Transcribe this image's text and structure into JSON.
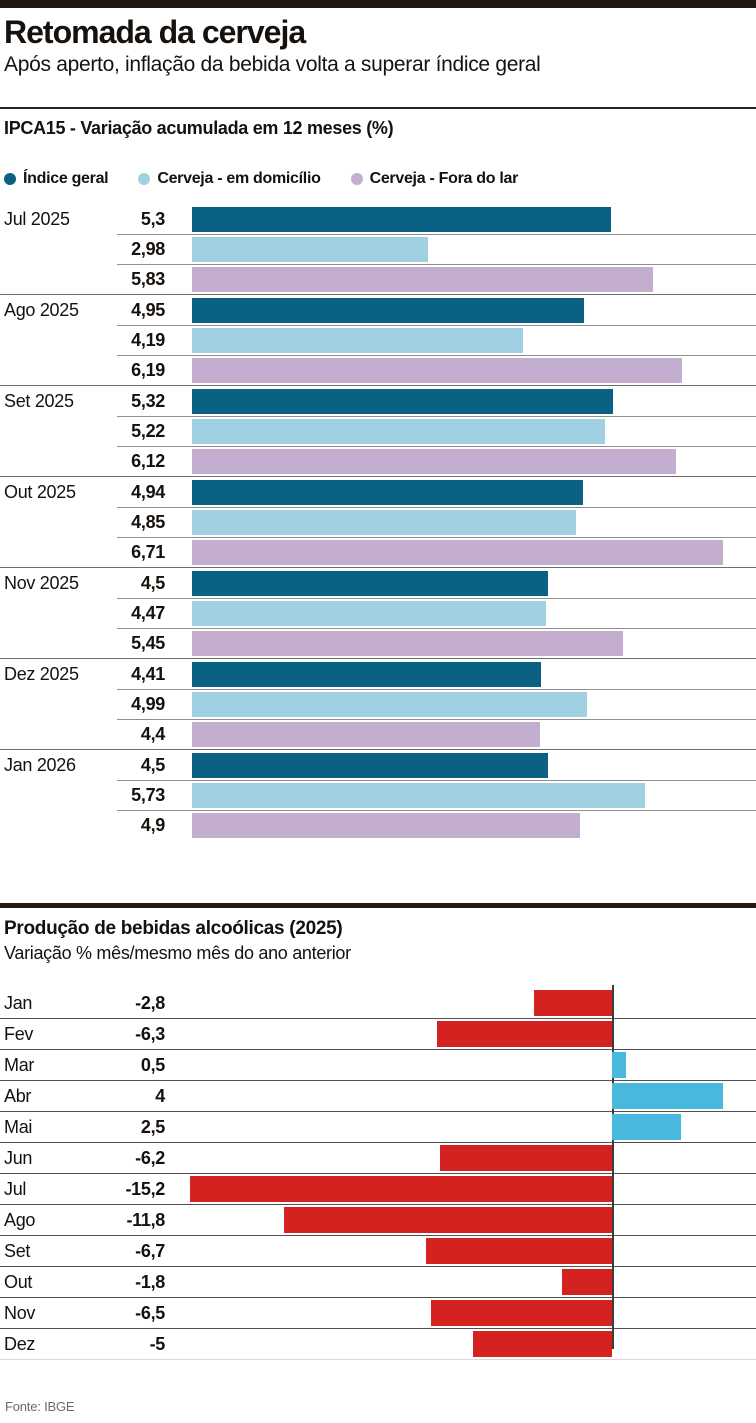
{
  "header": {
    "title": "Retomada da cerveja",
    "subtitle": "Após aperto, inflação da bebida volta a superar índice geral"
  },
  "footer": {
    "source": "Fonte: IBGE"
  },
  "colors": {
    "indice_geral": "#0b6183",
    "cerveja_domicilio": "#9fd1e2",
    "cerveja_fora": "#c4aed0",
    "negative": "#d42221",
    "positive": "#49b8de",
    "rule_dark": "#221913",
    "axis": "#3c3c3c"
  },
  "chart_data": [
    {
      "type": "bar",
      "orientation": "horizontal",
      "title": "IPCA15 - Variação acumulada em 12 meses (%)",
      "legend_position": "top",
      "grid": false,
      "xlim": [
        0,
        7.13
      ],
      "categories": [
        "Jul 2025",
        "Ago 2025",
        "Set 2025",
        "Out 2025",
        "Nov 2025",
        "Dez 2025",
        "Jan 2026"
      ],
      "series": [
        {
          "name": "Índice geral",
          "color": "#0b6183",
          "values": [
            5.3,
            4.95,
            5.32,
            4.94,
            4.5,
            4.41,
            4.5
          ],
          "labels": [
            "5,3",
            "4,95",
            "5,32",
            "4,94",
            "4,5",
            "4,41",
            "4,5"
          ]
        },
        {
          "name": "Cerveja - em domicílio",
          "color": "#9fd1e2",
          "values": [
            2.98,
            4.19,
            5.22,
            4.85,
            4.47,
            4.99,
            5.73
          ],
          "labels": [
            "2,98",
            "4,19",
            "5,22",
            "4,85",
            "4,47",
            "4,99",
            "5,73"
          ]
        },
        {
          "name": "Cerveja - Fora do lar",
          "color": "#c4aed0",
          "values": [
            5.83,
            6.19,
            6.12,
            6.71,
            5.45,
            4.4,
            4.9
          ],
          "labels": [
            "5,83",
            "6,19",
            "6,12",
            "6,71",
            "5,45",
            "4,4",
            "4,9"
          ]
        }
      ]
    },
    {
      "type": "bar",
      "orientation": "horizontal",
      "title": "Produção de bebidas alcoólicas (2025)",
      "subtitle": "Variação % mês/mesmo mês do ano anterior",
      "grid": false,
      "xlim": [
        -15.2,
        5.2
      ],
      "positive_color": "#49b8de",
      "negative_color": "#d42221",
      "categories": [
        "Jan",
        "Fev",
        "Mar",
        "Abr",
        "Mai",
        "Jun",
        "Jul",
        "Ago",
        "Set",
        "Out",
        "Nov",
        "Dez"
      ],
      "values": [
        -2.8,
        -6.3,
        0.5,
        4,
        2.5,
        -6.2,
        -15.2,
        -11.8,
        -6.7,
        -1.8,
        -6.5,
        -5
      ],
      "labels": [
        "-2,8",
        "-6,3",
        "0,5",
        "4",
        "2,5",
        "-6,2",
        "-15,2",
        "-11,8",
        "-6,7",
        "-1,8",
        "-6,5",
        "-5"
      ]
    }
  ]
}
